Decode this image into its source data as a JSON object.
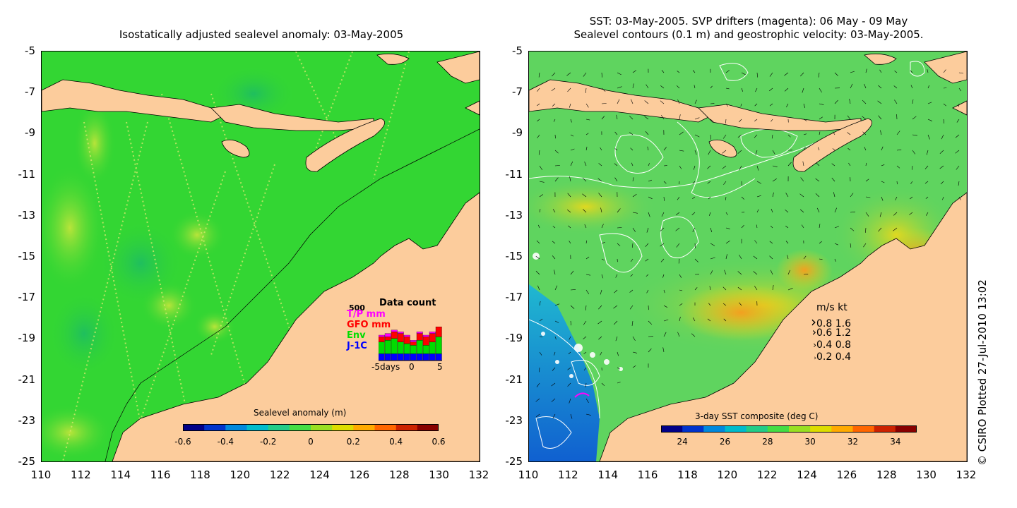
{
  "left_panel": {
    "title": "Isostatically adjusted sealevel anomaly: 03-May-2005",
    "colorbar": {
      "label": "Sealevel anomaly (m)",
      "ticks": [
        "-0.6",
        "-0.4",
        "-0.2",
        "0",
        "0.2",
        "0.4",
        "0.6"
      ],
      "colors": [
        "#000088",
        "#0033cc",
        "#0088dd",
        "#00bbcc",
        "#22cc88",
        "#44dd44",
        "#99e022",
        "#dddd00",
        "#ffaa00",
        "#ff6600",
        "#cc2200",
        "#880000"
      ]
    },
    "data_count": {
      "title": "Data count",
      "max_label": "500",
      "legend": [
        {
          "label": "T/P mm",
          "color": "#ff00ff"
        },
        {
          "label": "GFO mm",
          "color": "#ff0000"
        },
        {
          "label": "Env",
          "color": "#00dd00"
        },
        {
          "label": "J-1C",
          "color": "#0000ff"
        }
      ],
      "x_label": "-5days",
      "x_ticks": [
        "0",
        "5"
      ],
      "bars": [
        {
          "j1c": 0.2,
          "env": 0.35,
          "gfo": 0.15,
          "tp": 0.05
        },
        {
          "j1c": 0.2,
          "env": 0.4,
          "gfo": 0.1,
          "tp": 0.1
        },
        {
          "j1c": 0.2,
          "env": 0.45,
          "gfo": 0.2,
          "tp": 0.05
        },
        {
          "j1c": 0.2,
          "env": 0.35,
          "gfo": 0.25,
          "tp": 0.05
        },
        {
          "j1c": 0.2,
          "env": 0.3,
          "gfo": 0.2,
          "tp": 0.05
        },
        {
          "j1c": 0.2,
          "env": 0.25,
          "gfo": 0.1,
          "tp": 0.05
        },
        {
          "j1c": 0.2,
          "env": 0.4,
          "gfo": 0.2,
          "tp": 0.05
        },
        {
          "j1c": 0.2,
          "env": 0.25,
          "gfo": 0.25,
          "tp": 0.05
        },
        {
          "j1c": 0.2,
          "env": 0.35,
          "gfo": 0.25,
          "tp": 0.05
        },
        {
          "j1c": 0.2,
          "env": 0.5,
          "gfo": 0.3,
          "tp": 0.05
        }
      ]
    }
  },
  "right_panel": {
    "title_line1": "SST: 03-May-2005. SVP drifters (magenta): 06 May - 09 May",
    "title_line2": "Sealevel contours (0.1 m) and geostrophic velocity: 03-May-2005.",
    "colorbar": {
      "label": "3-day SST composite (deg C)",
      "ticks": [
        "24",
        "26",
        "28",
        "30",
        "32",
        "34"
      ],
      "colors": [
        "#000088",
        "#0033cc",
        "#0088dd",
        "#00bbcc",
        "#22cc88",
        "#44dd44",
        "#99e022",
        "#dddd00",
        "#ffaa00",
        "#ff6600",
        "#cc2200",
        "#880000"
      ]
    },
    "speed_legend": {
      "header": "m/s  kt",
      "rows": [
        "0.8  1.6",
        "0.6  1.2",
        "0.4  0.8",
        "0.2  0.4"
      ]
    }
  },
  "axes": {
    "y_ticks": [
      "-5",
      "-7",
      "-9",
      "-11",
      "-13",
      "-15",
      "-17",
      "-19",
      "-21",
      "-23",
      "-25"
    ],
    "x_ticks": [
      "110",
      "112",
      "114",
      "116",
      "118",
      "120",
      "122",
      "124",
      "126",
      "128",
      "130",
      "132"
    ]
  },
  "credit": "© CSIRO Plotted 27-Jul-2010 13:02",
  "colors": {
    "land": "#fccc9c",
    "sea_left": "#33d633",
    "sea_right": "#5fd45f"
  }
}
